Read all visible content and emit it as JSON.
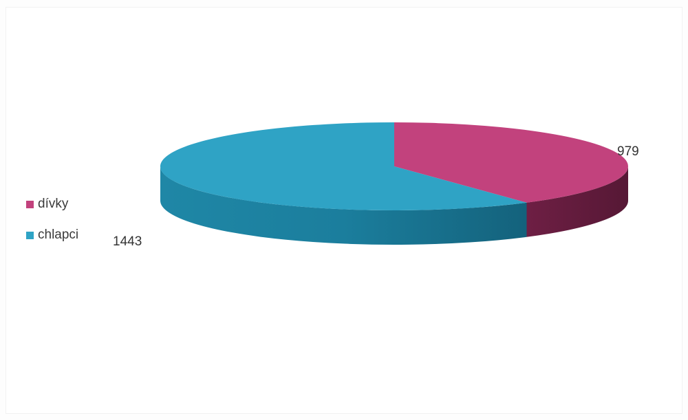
{
  "chart_data": {
    "type": "pie",
    "style": "3d",
    "categories": [
      "dívky",
      "chlapci"
    ],
    "values": [
      979,
      1443
    ],
    "colors": [
      "#c2427d",
      "#2fa3c5"
    ],
    "data_labels": [
      "979",
      "1443"
    ],
    "legend": {
      "placement": "left",
      "entries": [
        "dívky",
        "chlapci"
      ]
    }
  }
}
